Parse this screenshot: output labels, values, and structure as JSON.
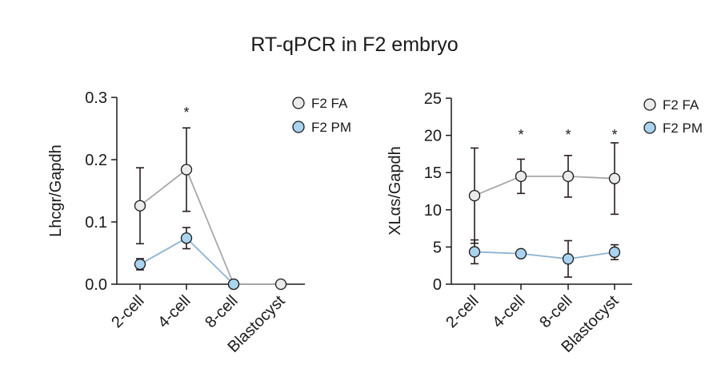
{
  "title": "RT-qPCR in F2 embryo",
  "colors": {
    "F2 FA": {
      "line": "#a8a8a8",
      "fill": "#ebebeb"
    },
    "F2 PM": {
      "line": "#8db4d0",
      "fill": "#a9d3ee"
    }
  },
  "chart_data": [
    {
      "type": "line",
      "ylabel": "Lhcgr/Gapdh",
      "ylim": [
        0,
        0.3
      ],
      "yticks": [
        "0.0",
        "0.1",
        "0.2",
        "0.3"
      ],
      "categories": [
        "2-cell",
        "4-cell",
        "8-cell",
        "Blastocyst"
      ],
      "legend": [
        "F2 FA",
        "F2 PM"
      ],
      "legend_position": "top-right",
      "grid": false,
      "series": [
        {
          "name": "F2 FA",
          "values": [
            0.126,
            0.184,
            0.0,
            0.0
          ],
          "err": [
            0.061,
            0.067,
            null,
            null
          ]
        },
        {
          "name": "F2 PM",
          "values": [
            0.032,
            0.074,
            0.0,
            null
          ],
          "err": [
            0.009,
            0.017,
            null,
            null
          ]
        }
      ],
      "annotations": [
        {
          "category": "4-cell",
          "text": "*"
        }
      ]
    },
    {
      "type": "line",
      "ylabel": "XLαs/Gapdh",
      "ylim": [
        0,
        25
      ],
      "yticks": [
        "0",
        "5",
        "10",
        "15",
        "20",
        "25"
      ],
      "categories": [
        "2-cell",
        "4-cell",
        "8-cell",
        "Blastocyst"
      ],
      "legend": [
        "F2 FA",
        "F2 PM"
      ],
      "legend_position": "top-right",
      "grid": false,
      "series": [
        {
          "name": "F2 FA",
          "values": [
            11.9,
            14.5,
            14.5,
            14.2
          ],
          "err": [
            6.4,
            2.3,
            2.8,
            4.8
          ]
        },
        {
          "name": "F2 PM",
          "values": [
            4.35,
            4.1,
            3.4,
            4.3
          ],
          "err": [
            1.6,
            0.0,
            2.45,
            1.0
          ]
        }
      ],
      "annotations": [
        {
          "category": "4-cell",
          "text": "*"
        },
        {
          "category": "8-cell",
          "text": "*"
        },
        {
          "category": "Blastocyst",
          "text": "*"
        }
      ]
    }
  ]
}
